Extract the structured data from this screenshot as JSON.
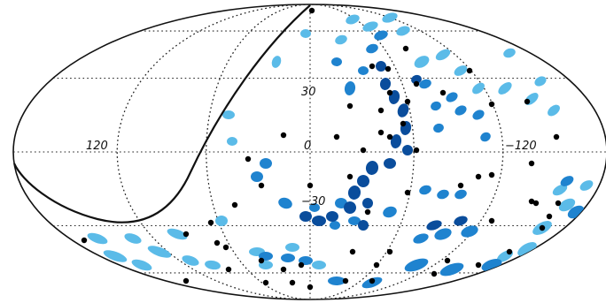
{
  "map": {
    "projection": "aitoff",
    "grid": true,
    "longitude_labels": [
      "120",
      "0",
      "−120"
    ],
    "latitude_labels": [
      "30",
      "−30"
    ],
    "colors": {
      "light": "#5bbbe8",
      "medium": "#1f83cf",
      "dark": "#0a4d9c",
      "black": "#000000",
      "grid": "#222222"
    }
  }
}
